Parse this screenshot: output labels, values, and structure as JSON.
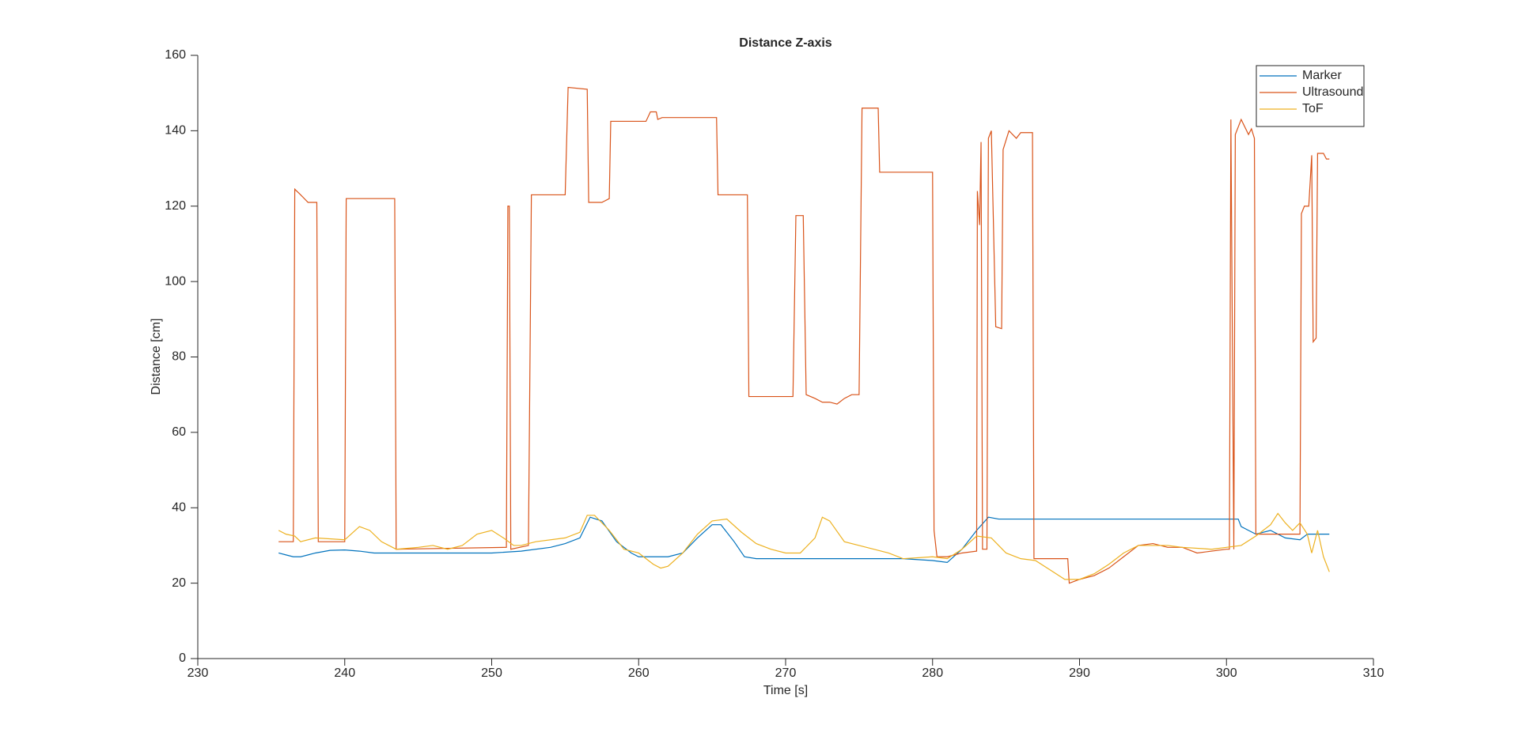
{
  "chart_data": {
    "type": "line",
    "title": "Distance Z-axis",
    "x_label": "Time [s]",
    "y_label": "Distance [cm]",
    "xlim": [
      230,
      310
    ],
    "xticks": [
      230,
      240,
      250,
      260,
      270,
      280,
      290,
      300,
      310
    ],
    "ylim": [
      0,
      160
    ],
    "yticks": [
      0,
      20,
      40,
      60,
      80,
      100,
      120,
      140,
      160
    ],
    "grid": false,
    "legend_location": "northeast",
    "series": [
      {
        "name": "Marker",
        "color": "#0072BD",
        "x": [
          235.5,
          236,
          236.5,
          237,
          237.5,
          238,
          239,
          240,
          241,
          242,
          245,
          250,
          252,
          254,
          255,
          256,
          256.7,
          257.5,
          258.5,
          259.5,
          260,
          262,
          263,
          264,
          265,
          265.6,
          266.5,
          267.2,
          268,
          278,
          280,
          281,
          282,
          283,
          283.8,
          284.5,
          300.8,
          301,
          301.5,
          302,
          303,
          304,
          305,
          305.5,
          307
        ],
        "values": [
          28,
          27.5,
          27,
          27,
          27.5,
          28,
          28.7,
          28.8,
          28.5,
          28,
          28,
          28,
          28.5,
          29.5,
          30.5,
          32,
          37.5,
          36.5,
          31,
          28,
          27,
          27,
          28,
          32,
          35.5,
          35.5,
          31,
          27,
          26.5,
          26.5,
          26,
          25.5,
          29,
          34,
          37.5,
          37,
          37,
          35,
          34,
          33,
          34,
          32,
          31.5,
          33,
          33
        ]
      },
      {
        "name": "Ultrasound",
        "color": "#D95319",
        "x": [
          235.5,
          236.5,
          236.6,
          237,
          237.5,
          238.1,
          238.2,
          240,
          240.1,
          243.4,
          243.5,
          251,
          251.1,
          251.2,
          251.3,
          252.5,
          252.7,
          255,
          255.2,
          256.5,
          256.6,
          257.5,
          258,
          258.1,
          260.5,
          260.8,
          261.2,
          261.3,
          261.6,
          265.3,
          265.4,
          267.4,
          267.5,
          270.5,
          270.7,
          271.2,
          271.4,
          272,
          272.5,
          273,
          273.5,
          274,
          274.5,
          275,
          275.2,
          276.3,
          276.4,
          280,
          280.1,
          280.3,
          281,
          282,
          283,
          283.05,
          283.2,
          283.3,
          283.4,
          283.7,
          283.8,
          284,
          284.3,
          284.7,
          284.8,
          285.2,
          285.7,
          286,
          286.8,
          286.9,
          289.2,
          289.3,
          290,
          291,
          292,
          293,
          294,
          295,
          296,
          297,
          298,
          299,
          300,
          300.2,
          300.3,
          300.5,
          300.6,
          301,
          301.5,
          301.7,
          301.9,
          302,
          303,
          304,
          305,
          305.1,
          305.3,
          305.6,
          305.8,
          305.9,
          306.1,
          306.2,
          306.6,
          306.8,
          307
        ],
        "values": [
          31,
          31,
          124.5,
          123,
          121,
          121,
          31,
          31,
          122,
          122,
          29,
          29.5,
          120,
          120,
          29,
          30,
          123,
          123,
          151.5,
          151,
          121,
          121,
          122,
          142.5,
          142.5,
          145,
          145,
          143,
          143.5,
          143.5,
          123,
          123,
          69.5,
          69.5,
          117.5,
          117.5,
          70,
          69,
          68,
          68,
          67.5,
          69,
          70,
          70,
          146,
          146,
          129,
          129,
          34,
          27,
          27,
          28,
          28.5,
          124,
          115,
          137,
          29,
          29,
          138,
          140,
          88,
          87.5,
          135,
          140,
          138,
          139.5,
          139.5,
          26.5,
          26.5,
          20,
          21,
          22,
          24,
          27,
          30,
          30.5,
          29.5,
          29.5,
          28,
          28.5,
          29,
          29,
          143,
          29,
          139,
          143,
          139,
          140.5,
          138,
          33,
          33,
          33,
          33,
          118,
          120,
          120,
          133.5,
          84,
          85,
          134,
          134,
          132.5,
          132.5
        ]
      },
      {
        "name": "ToF",
        "color": "#EDB120",
        "x": [
          235.5,
          236,
          236.6,
          237,
          238,
          240,
          241,
          241.7,
          242.5,
          243.5,
          245,
          246,
          247,
          248,
          249,
          250,
          250.8,
          251.5,
          252,
          253,
          255,
          256,
          256.5,
          257,
          258,
          259,
          260,
          261,
          261.5,
          262,
          263,
          264,
          265,
          266,
          267,
          268,
          269,
          270,
          271,
          272,
          272.5,
          273,
          274,
          275,
          276,
          277,
          278,
          280,
          281,
          282,
          283,
          284,
          285,
          286,
          287,
          288,
          289,
          290,
          291,
          292,
          293,
          294,
          296,
          297,
          299,
          300,
          301,
          302,
          303,
          303.5,
          304,
          304.5,
          305,
          305.5,
          305.8,
          306.2,
          306.6,
          307
        ],
        "values": [
          34,
          33,
          32.5,
          31,
          32,
          31.5,
          35,
          34,
          31,
          29,
          29.5,
          30,
          29,
          30,
          33,
          34,
          32,
          30,
          30,
          31,
          32,
          33.5,
          38,
          38,
          34,
          29,
          28,
          25,
          24,
          24.5,
          28,
          33,
          36.5,
          37,
          33.5,
          30.5,
          29,
          28,
          28,
          32,
          37.5,
          36.5,
          31,
          30,
          29,
          28,
          26.5,
          27,
          26.5,
          29,
          32.5,
          32,
          28,
          26.5,
          26,
          23.5,
          21,
          21,
          22.5,
          25,
          28,
          30,
          30,
          29.5,
          29,
          29.5,
          30,
          32.5,
          35.5,
          38.5,
          36,
          34,
          36,
          33,
          28,
          34,
          27,
          23
        ]
      }
    ]
  }
}
